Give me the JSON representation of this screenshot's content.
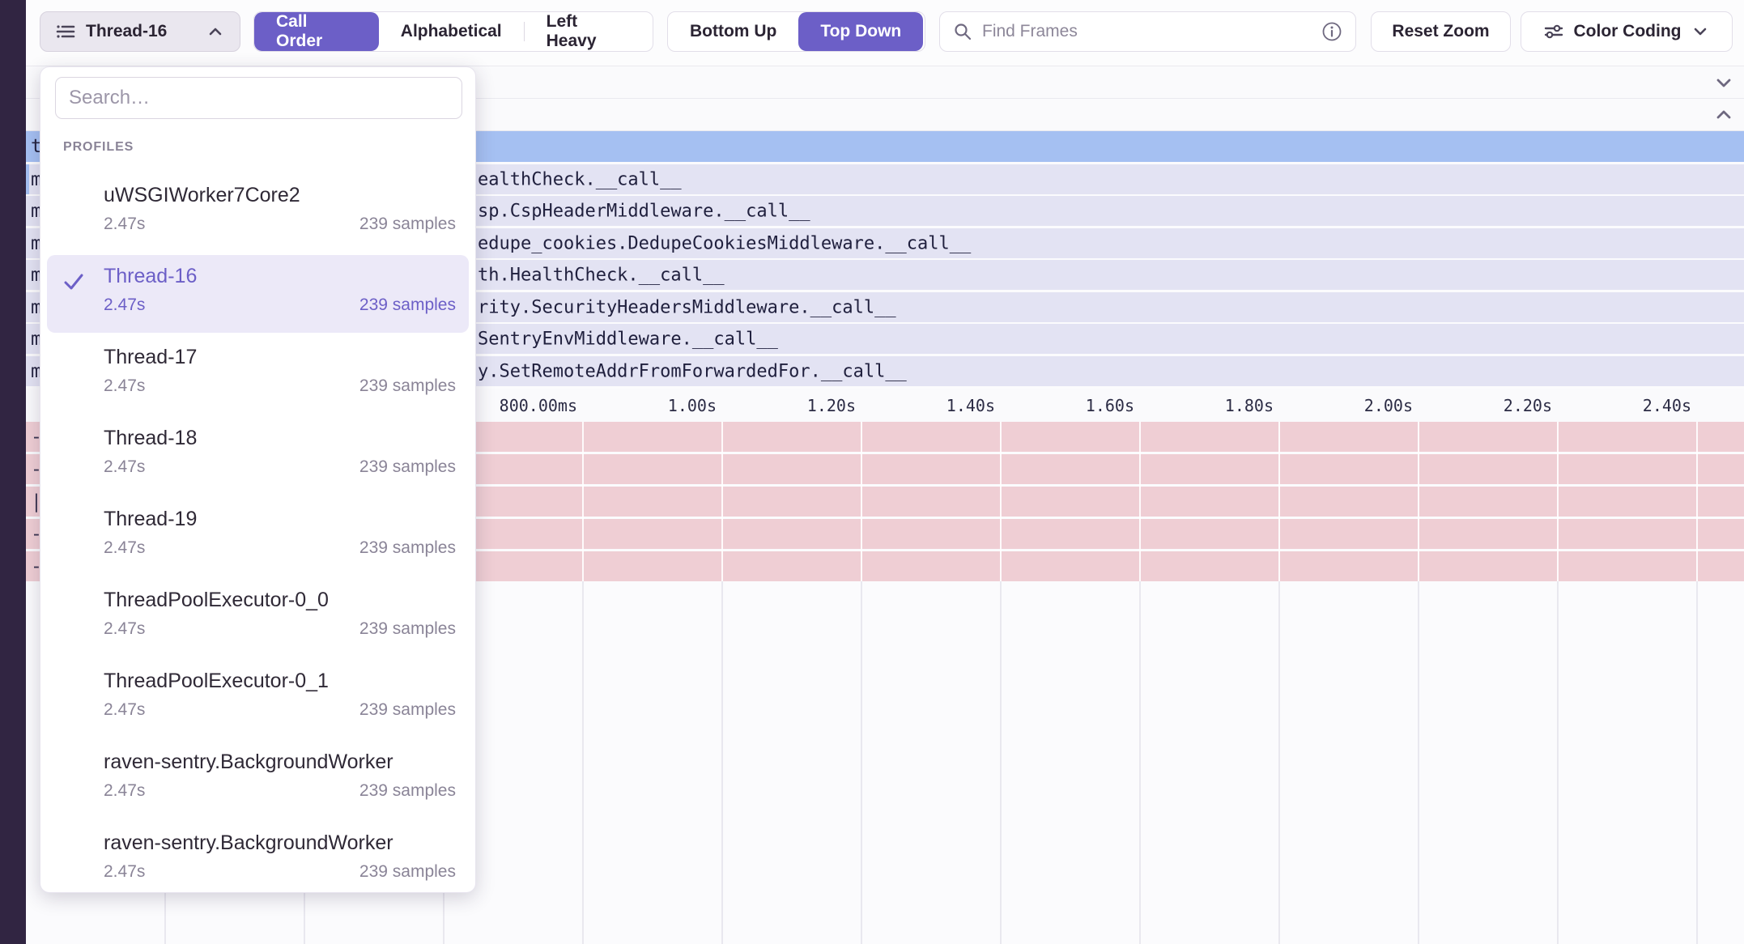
{
  "toolbar": {
    "thread_selector": {
      "label": "Thread-16"
    },
    "sort_options": {
      "call_order": "Call Order",
      "alphabetical": "Alphabetical",
      "left_heavy": "Left Heavy",
      "selected": "Call Order"
    },
    "direction_options": {
      "bottom_up": "Bottom Up",
      "top_down": "Top Down",
      "selected": "Top Down"
    },
    "find_frames": {
      "placeholder": "Find Frames"
    },
    "reset_zoom_label": "Reset Zoom",
    "color_coding_label": "Color Coding"
  },
  "profiles_dropdown": {
    "search_placeholder": "Search…",
    "section_label": "PROFILES",
    "items": [
      {
        "name": "uWSGIWorker7Core2",
        "duration": "2.47s",
        "samples": "239 samples",
        "selected": false
      },
      {
        "name": "Thread-16",
        "duration": "2.47s",
        "samples": "239 samples",
        "selected": true
      },
      {
        "name": "Thread-17",
        "duration": "2.47s",
        "samples": "239 samples",
        "selected": false
      },
      {
        "name": "Thread-18",
        "duration": "2.47s",
        "samples": "239 samples",
        "selected": false
      },
      {
        "name": "Thread-19",
        "duration": "2.47s",
        "samples": "239 samples",
        "selected": false
      },
      {
        "name": "ThreadPoolExecutor-0_0",
        "duration": "2.47s",
        "samples": "239 samples",
        "selected": false
      },
      {
        "name": "ThreadPoolExecutor-0_1",
        "duration": "2.47s",
        "samples": "239 samples",
        "selected": false
      },
      {
        "name": "raven-sentry.BackgroundWorker",
        "duration": "2.47s",
        "samples": "239 samples",
        "selected": false
      },
      {
        "name": "raven-sentry.BackgroundWorker",
        "duration": "2.47s",
        "samples": "239 samples",
        "selected": false
      }
    ]
  },
  "flamegraph": {
    "selected_row_fragment": "t",
    "frame_rows": [
      {
        "fragment": "m",
        "text": "ealthCheck.__call__"
      },
      {
        "fragment": "m",
        "text": "sp.CspHeaderMiddleware.__call__"
      },
      {
        "fragment": "m",
        "text": "edupe_cookies.DedupeCookiesMiddleware.__call__"
      },
      {
        "fragment": "m",
        "text": "th.HealthCheck.__call__"
      },
      {
        "fragment": "m",
        "text": "rity.SecurityHeadersMiddleware.__call__"
      },
      {
        "fragment": "m",
        "text": "SentryEnvMiddleware.__call__"
      },
      {
        "fragment": "m",
        "text": "y.SetRemoteAddrFromForwardedFor.__call__"
      }
    ],
    "axis_ticks": [
      "800.00ms",
      "1.00s",
      "1.20s",
      "1.40s",
      "1.60s",
      "1.80s",
      "2.00s",
      "2.20s",
      "2.40s"
    ],
    "pink_row_fragments": [
      "-",
      "-",
      "|",
      "-",
      "-"
    ]
  },
  "colors": {
    "accent": "#6C5FC7",
    "selected_frame_blue": "#A5C0F2",
    "frame_row_lavender": "#E3E3F3",
    "pink_row": "#EFCED4",
    "sidebar_dark": "#312542"
  }
}
